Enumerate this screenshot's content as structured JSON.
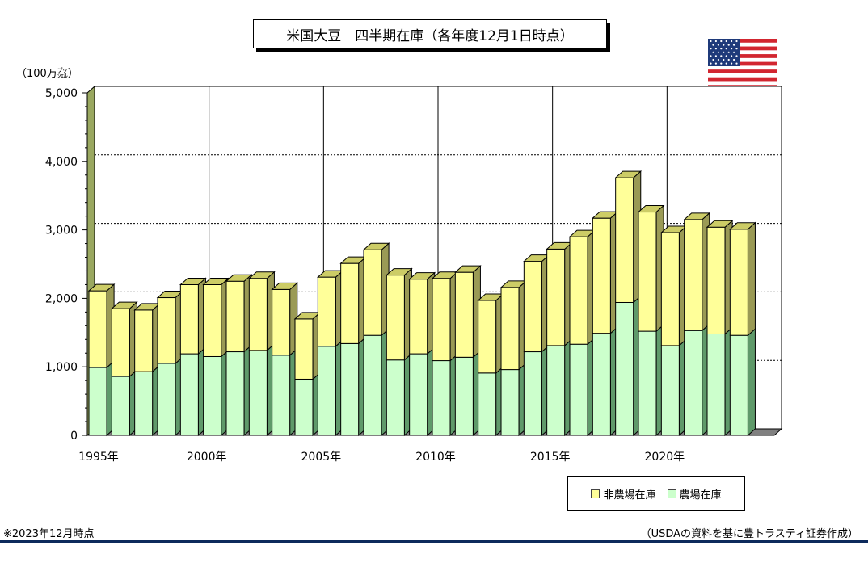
{
  "chart_data": {
    "type": "bar",
    "stacked": true,
    "title": "米国大豆　四半期在庫（各年度12月1日時点）",
    "ylabel": "(100万ブッシェル)",
    "unit_label": "（100万㌴）",
    "ylim": [
      0,
      5000
    ],
    "yticks": [
      "0",
      "1,000",
      "2,000",
      "3,000",
      "4,000",
      "5,000"
    ],
    "ytick_values": [
      0,
      1000,
      2000,
      3000,
      4000,
      5000
    ],
    "xtick_labels": [
      "1995年",
      "2000年",
      "2005年",
      "2010年",
      "2015年",
      "2020年"
    ],
    "xtick_years": [
      1995,
      2000,
      2005,
      2010,
      2015,
      2020
    ],
    "categories": [
      1995,
      1996,
      1997,
      1998,
      1999,
      2000,
      2001,
      2002,
      2003,
      2004,
      2005,
      2006,
      2007,
      2008,
      2009,
      2010,
      2011,
      2012,
      2013,
      2014,
      2015,
      2016,
      2017,
      2018,
      2019,
      2020,
      2021,
      2022,
      2023
    ],
    "series": [
      {
        "name": "農場在庫",
        "color": "#ccffcc",
        "values": [
          990,
          860,
          930,
          1050,
          1190,
          1150,
          1220,
          1240,
          1170,
          820,
          1300,
          1340,
          1460,
          1100,
          1190,
          1090,
          1140,
          910,
          960,
          1220,
          1310,
          1330,
          1490,
          1940,
          1520,
          1310,
          1530,
          1480,
          1460
        ]
      },
      {
        "name": "非農場在庫",
        "color": "#ffff99",
        "values": [
          1120,
          990,
          900,
          960,
          1010,
          1050,
          1030,
          1050,
          960,
          880,
          1010,
          1170,
          1250,
          1240,
          1090,
          1200,
          1240,
          1060,
          1200,
          1320,
          1410,
          1570,
          1680,
          1820,
          1740,
          1650,
          1620,
          1560,
          1550
        ]
      }
    ],
    "legend_order": [
      "非農場在庫",
      "農場在庫"
    ],
    "legend_position": "bottom-right",
    "grid": "dotted horizontal lines at 1000-unit intervals; vertical lines every 5 years"
  },
  "note": "※2023年12月時点",
  "source": "（USDAの資料を基に豊トラスティ証券作成）",
  "flag": "us-flag-icon",
  "colors": {
    "bottom_rule": "#0d2a5c",
    "flag_red": "#d22630",
    "flag_blue": "#1f3a7a"
  }
}
